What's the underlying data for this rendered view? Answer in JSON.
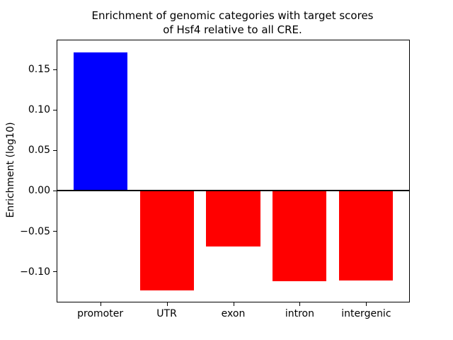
{
  "chart_data": {
    "type": "bar",
    "title": "Enrichment of genomic categories with target scores\nof Hsf4 relative to all CRE.",
    "xlabel": "",
    "ylabel": "Enrichment (log10)",
    "categories": [
      "promoter",
      "UTR",
      "exon",
      "intron",
      "intergenic"
    ],
    "values": [
      0.171,
      -0.123,
      -0.069,
      -0.112,
      -0.111
    ],
    "bar_colors": [
      "#0000ff",
      "#ff0000",
      "#ff0000",
      "#ff0000",
      "#ff0000"
    ],
    "yticks": [
      0.15,
      0.1,
      0.05,
      0.0,
      -0.05,
      -0.1
    ],
    "ytick_labels": [
      "0.15",
      "0.10",
      "0.05",
      "0.00",
      "−0.05",
      "−0.10"
    ],
    "ylim": [
      -0.137,
      0.186
    ],
    "zero_line": true,
    "grid": false,
    "legend": null
  },
  "colors": {
    "positive_bar": "#0000ff",
    "negative_bar": "#ff0000",
    "axis": "#000000",
    "background": "#ffffff"
  }
}
